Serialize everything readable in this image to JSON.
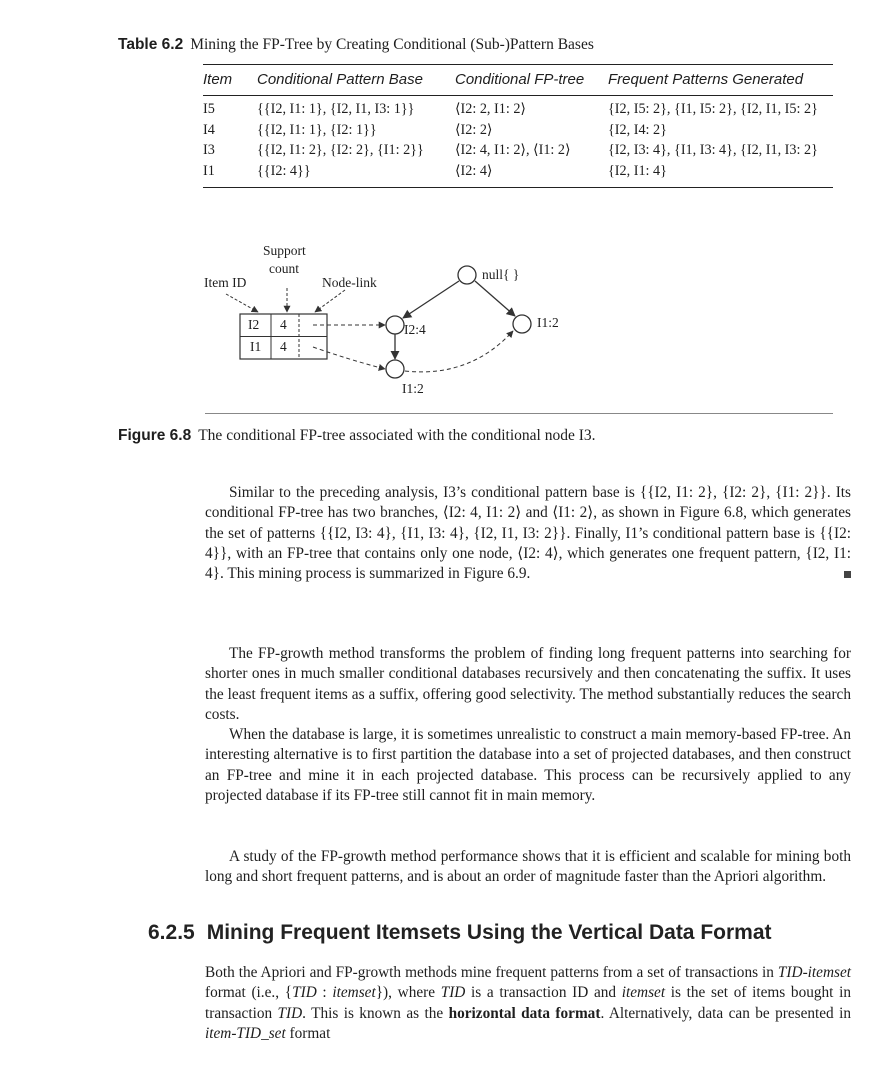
{
  "table": {
    "label": "Table 6.2",
    "caption": "Mining the FP-Tree by Creating Conditional (Sub-)Pattern Bases",
    "headers": [
      "Item",
      "Conditional Pattern Base",
      "Conditional FP-tree",
      "Frequent Patterns Generated"
    ],
    "rows": [
      [
        "I5",
        "{{I2, I1: 1}, {I2, I1, I3: 1}}",
        "⟨I2: 2, I1: 2⟩",
        "{I2, I5: 2}, {I1, I5: 2}, {I2, I1, I5: 2}"
      ],
      [
        "I4",
        "{{I2, I1: 1}, {I2: 1}}",
        "⟨I2: 2⟩",
        "{I2, I4: 2}"
      ],
      [
        "I3",
        "{{I2, I1: 2}, {I2: 2}, {I1: 2}}",
        "⟨I2: 4, I1: 2⟩, ⟨I1: 2⟩",
        "{I2, I3: 4}, {I1, I3: 4}, {I2, I1, I3: 2}"
      ],
      [
        "I1",
        "{{I2: 4}}",
        "⟨I2: 4⟩",
        "{I2, I1: 4}"
      ]
    ]
  },
  "figure": {
    "labels": {
      "item_id": "Item ID",
      "support": "Support",
      "count": "count",
      "node_link": "Node-link",
      "null": "null{ }",
      "node_i2_4": "I2:4",
      "node_i1_2_right": "I1:2",
      "node_i1_2_bottom": "I1:2"
    },
    "header_table": [
      {
        "item": "I2",
        "count": "4"
      },
      {
        "item": "I1",
        "count": "4"
      }
    ],
    "label": "Figure 6.8",
    "caption": "The conditional FP-tree associated with the conditional node I3."
  },
  "body": {
    "p1": "Similar to the preceding analysis, I3’s conditional pattern base is {{I2, I1: 2}, {I2: 2}, {I1: 2}}. Its conditional FP-tree has two branches, ⟨I2: 4, I1: 2⟩ and ⟨I1: 2⟩, as shown in Figure 6.8, which generates the set of patterns {{I2, I3: 4}, {I1, I3: 4}, {I2, I1, I3: 2}}. Finally, I1’s conditional pattern base is {{I2: 4}}, with an FP-tree that contains only one node, ⟨I2: 4⟩, which generates one frequent pattern, {I2, I1: 4}. This mining process is summarized in Figure 6.9.",
    "p2": "The FP-growth method transforms the problem of finding long frequent patterns into searching for shorter ones in much smaller conditional databases recursively and then concatenating the suffix. It uses the least frequent items as a suffix, offering good selectivity. The method substantially reduces the search costs.",
    "p3": "When the database is large, it is sometimes unrealistic to construct a main memory-based FP-tree. An interesting alternative is to first partition the database into a set of projected databases, and then construct an FP-tree and mine it in each projected database. This process can be recursively applied to any projected database if its FP-tree still cannot fit in main memory.",
    "p4": "A study of the FP-growth method performance shows that it is efficient and scalable for mining both long and short frequent patterns, and is about an order of magnitude faster than the Apriori algorithm.",
    "section_number": "6.2.5",
    "section_title": "Mining Frequent Itemsets Using the Vertical Data Format",
    "p5_a": "Both the Apriori and FP-growth methods mine frequent patterns from a set of transactions in ",
    "p5_b": "TID-itemset",
    "p5_c": " format (i.e., {",
    "p5_d": "TID",
    "p5_e": " : ",
    "p5_f": "itemset",
    "p5_g": "}), where ",
    "p5_h": "TID",
    "p5_i": " is a transaction ID and ",
    "p5_j": "itemset",
    "p5_k": " is the set of items bought in transaction ",
    "p5_l": "TID",
    "p5_m": ". This is known as the ",
    "p5_n": "horizontal data format",
    "p5_o": ". Alternatively, data can be presented in ",
    "p5_p": "item-TID_set",
    "p5_q": " format"
  }
}
